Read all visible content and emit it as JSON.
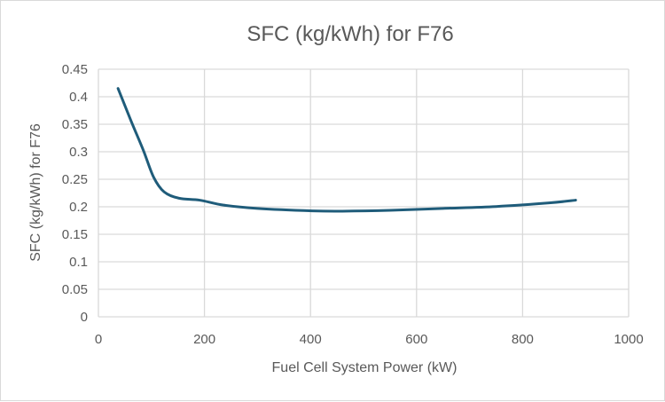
{
  "chart_data": {
    "type": "line",
    "title": "SFC (kg/kWh) for F76",
    "xlabel": "Fuel Cell System Power (kW)",
    "ylabel": "SFC (kg/kWh) for F76",
    "xlim": [
      0,
      1000
    ],
    "ylim": [
      0,
      0.45
    ],
    "xticks": [
      "0",
      "200",
      "400",
      "600",
      "800",
      "1000"
    ],
    "yticks": [
      "0",
      "0.05",
      "0.1",
      "0.15",
      "0.2",
      "0.25",
      "0.3",
      "0.35",
      "0.4",
      "0.45"
    ],
    "grid": true,
    "legend": "none",
    "series": [
      {
        "name": "SFC (kg/kWh) for F76",
        "color": "#1f5c7a",
        "x": [
          37,
          62,
          85,
          104,
          124,
          152,
          191,
          236,
          300,
          403,
          460,
          550,
          650,
          750,
          850,
          900
        ],
        "y": [
          0.415,
          0.355,
          0.302,
          0.254,
          0.227,
          0.2155,
          0.212,
          0.203,
          0.197,
          0.1926,
          0.192,
          0.1935,
          0.197,
          0.2005,
          0.207,
          0.212
        ]
      }
    ]
  }
}
